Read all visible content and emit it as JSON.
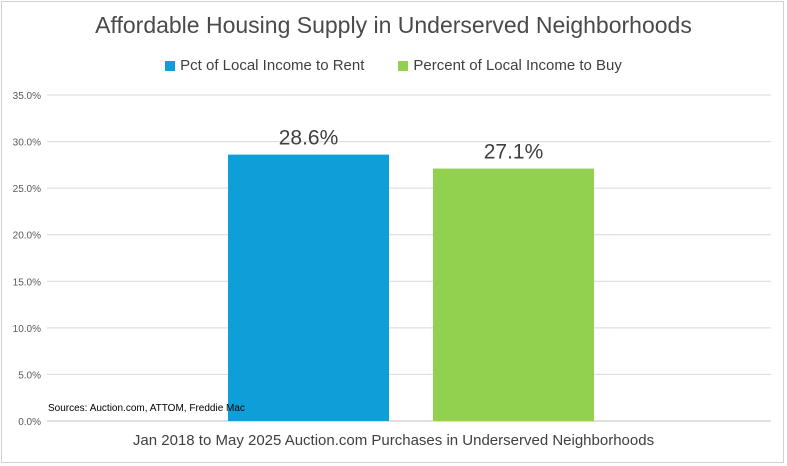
{
  "chart_data": {
    "type": "bar",
    "title": "Affordable Housing Supply in Underserved Neighborhoods",
    "xlabel": "Jan 2018 to May 2025 Auction.com Purchases in Underserved Neighborhoods",
    "ylabel": "",
    "ylim": [
      0,
      35
    ],
    "yticks": [
      "0.0%",
      "5.0%",
      "10.0%",
      "15.0%",
      "20.0%",
      "25.0%",
      "30.0%",
      "35.0%"
    ],
    "series": [
      {
        "name": "Pct of Local Income to Rent",
        "values": [
          28.6
        ],
        "label": "28.6%",
        "color": "#0e9fd8"
      },
      {
        "name": "Percent of Local Income to Buy",
        "values": [
          27.1
        ],
        "label": "27.1%",
        "color": "#92d050"
      }
    ],
    "grid": true,
    "legend": "top-center",
    "source_note": "Sources: Auction.com, ATTOM, Freddie Mac"
  }
}
